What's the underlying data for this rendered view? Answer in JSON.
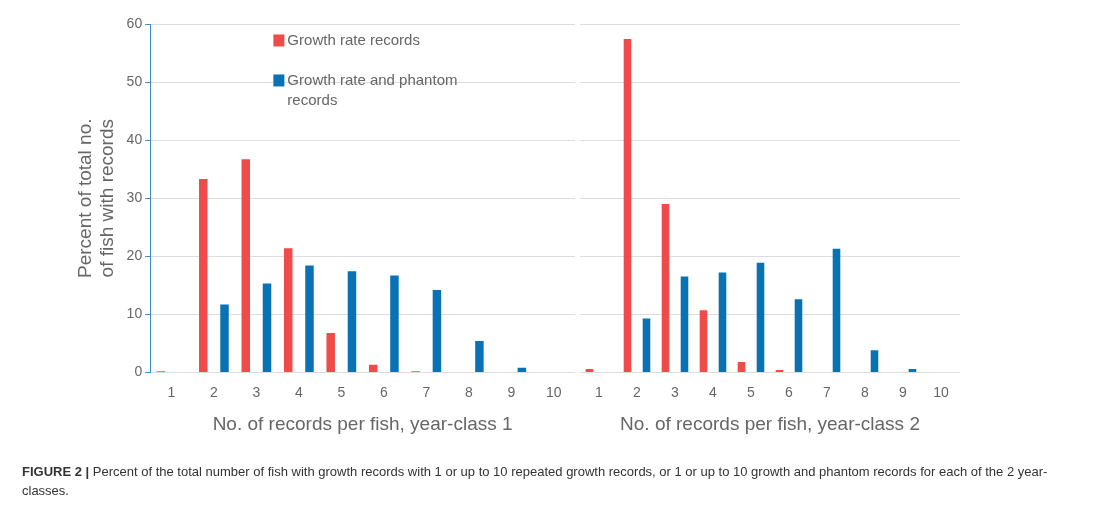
{
  "chart_data": [
    {
      "type": "bar",
      "xlabel": "No. of records per fish, year-class 1",
      "ylabel": "Percent of total no. of fish with records",
      "categories": [
        "1",
        "2",
        "3",
        "4",
        "5",
        "6",
        "7",
        "8",
        "9",
        "10"
      ],
      "series": [
        {
          "name": "Growth rate records",
          "color": "#ef4b4b",
          "values": [
            0.2,
            33.3,
            36.7,
            21.4,
            6.8,
            1.3,
            0.2,
            0,
            0,
            0
          ]
        },
        {
          "name": "Growth rate and phantom records",
          "color": "#0872b4",
          "values": [
            0,
            11.7,
            15.3,
            18.4,
            17.4,
            16.7,
            14.2,
            5.4,
            0.8,
            null
          ]
        }
      ],
      "ylim": [
        0,
        60
      ],
      "yticks": [
        0,
        10,
        20,
        30,
        40,
        50,
        60
      ],
      "grid": "y",
      "legend": "top",
      "annotations": [
        "FIGURE 2 | Percent of the total number of fish with growth records with 1 or up to 10 repeated growth records, or 1 or up to 10 growth and phantom records for each of the 2 year-classes."
      ]
    },
    {
      "type": "bar",
      "xlabel": "No. of records per fish, year-class 2",
      "categories": [
        "1",
        "2",
        "3",
        "4",
        "5",
        "6",
        "7",
        "8",
        "9",
        "10"
      ],
      "series": [
        {
          "color": "#ef4b4b",
          "values": [
            0.6,
            57.4,
            29.0,
            10.7,
            1.8,
            0.4,
            0,
            0,
            0,
            0
          ]
        },
        {
          "color": "#0872b4",
          "values": [
            0,
            9.3,
            16.5,
            17.2,
            18.9,
            12.6,
            21.3,
            3.8,
            0.6,
            0
          ]
        }
      ],
      "ylim": [
        0,
        60
      ],
      "yticks": [
        0,
        10,
        20,
        30,
        40,
        50,
        60
      ],
      "grid": "y",
      "tick_labels": "x"
    }
  ]
}
